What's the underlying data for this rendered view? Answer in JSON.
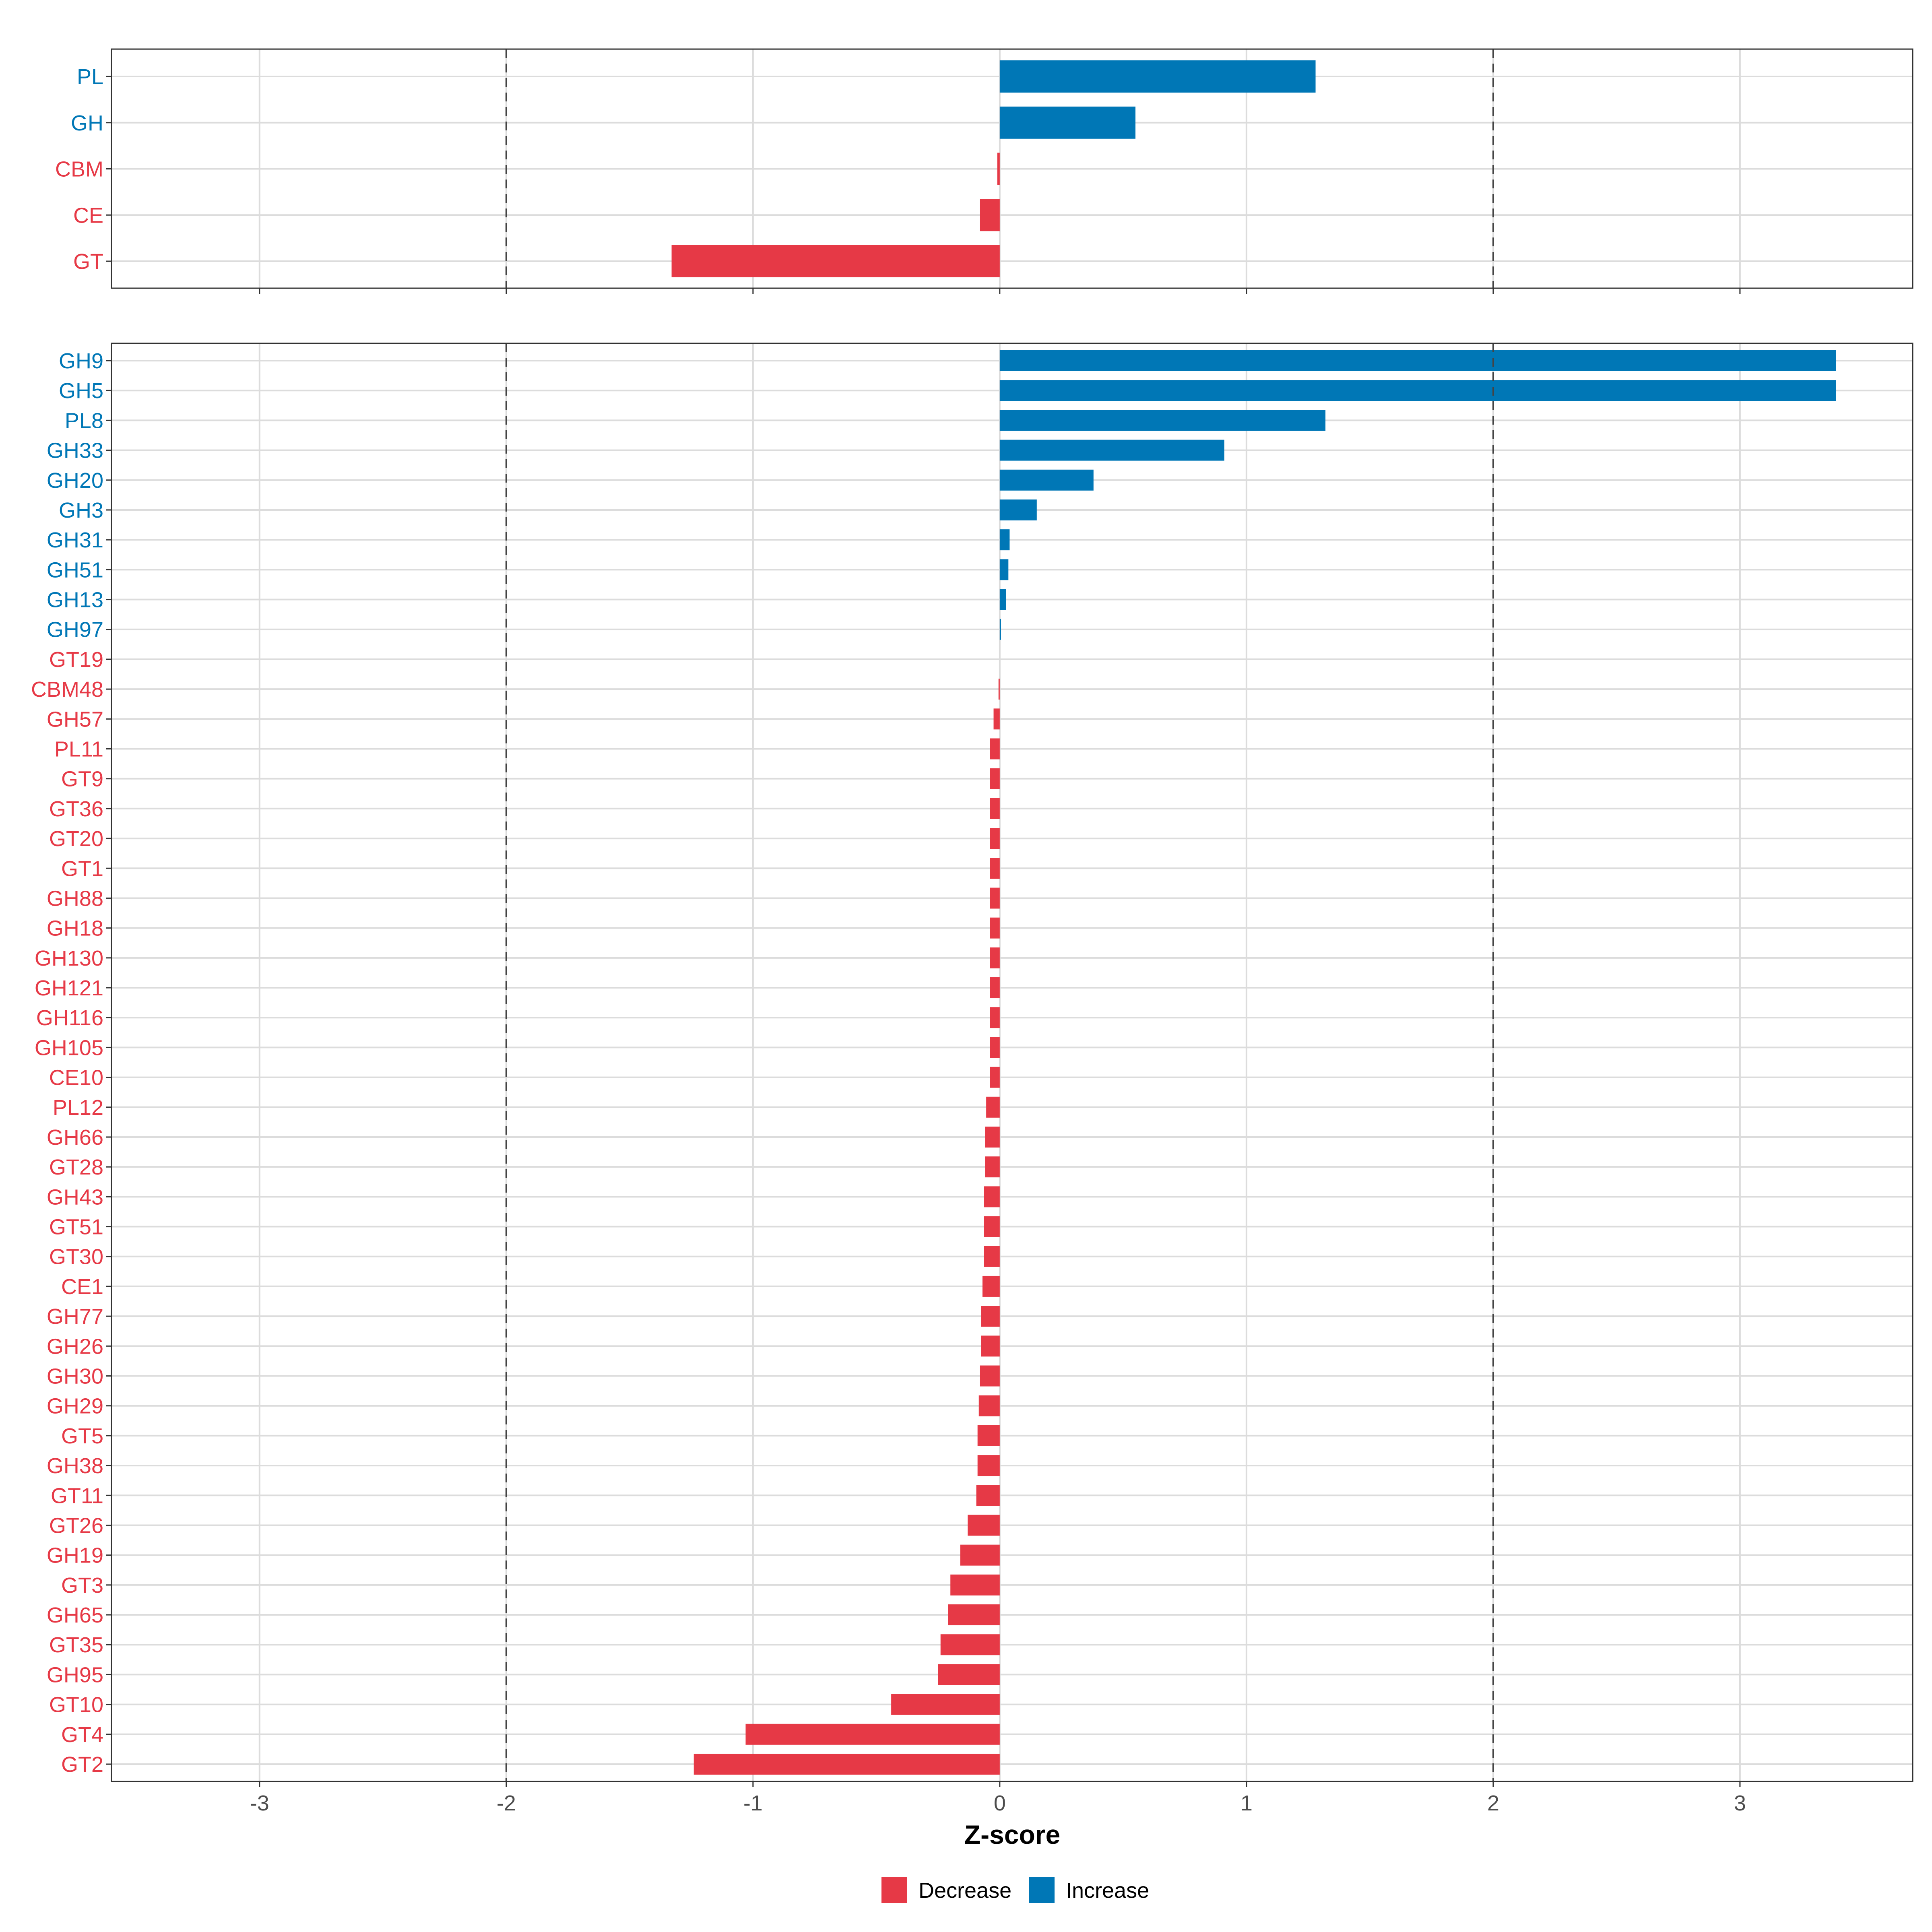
{
  "chart_data": [
    {
      "type": "bar",
      "orientation": "horizontal",
      "panel": "family",
      "categories": [
        "PL",
        "GH",
        "CBM",
        "CE",
        "GT"
      ],
      "values": [
        1.28,
        0.55,
        -0.01,
        -0.08,
        -1.33
      ],
      "xlim": [
        -3.6,
        3.7
      ],
      "xticks": [
        -3,
        -2,
        -1,
        0,
        1,
        2,
        3
      ],
      "reference_lines": [
        -2,
        2
      ],
      "grid": true
    },
    {
      "type": "bar",
      "orientation": "horizontal",
      "panel": "subfamily",
      "categories": [
        "GH9",
        "GH5",
        "PL8",
        "GH33",
        "GH20",
        "GH3",
        "GH31",
        "GH51",
        "GH13",
        "GH97",
        "GT19",
        "CBM48",
        "GH57",
        "PL11",
        "GT9",
        "GT36",
        "GT20",
        "GT1",
        "GH88",
        "GH18",
        "GH130",
        "GH121",
        "GH116",
        "GH105",
        "CE10",
        "PL12",
        "GH66",
        "GT28",
        "GH43",
        "GT51",
        "GT30",
        "CE1",
        "GH77",
        "GH26",
        "GH30",
        "GH29",
        "GT5",
        "GH38",
        "GT11",
        "GT26",
        "GH19",
        "GT3",
        "GH65",
        "GT35",
        "GH95",
        "GT10",
        "GT4",
        "GT2"
      ],
      "values": [
        3.39,
        3.39,
        1.32,
        0.91,
        0.38,
        0.15,
        0.04,
        0.035,
        0.025,
        0.005,
        0,
        -0.005,
        -0.025,
        -0.04,
        -0.04,
        -0.04,
        -0.04,
        -0.04,
        -0.04,
        -0.04,
        -0.04,
        -0.04,
        -0.04,
        -0.04,
        -0.04,
        -0.055,
        -0.06,
        -0.06,
        -0.065,
        -0.065,
        -0.065,
        -0.07,
        -0.075,
        -0.075,
        -0.08,
        -0.085,
        -0.09,
        -0.09,
        -0.095,
        -0.13,
        -0.16,
        -0.2,
        -0.21,
        -0.24,
        -0.25,
        -0.44,
        -1.03,
        -1.24
      ],
      "xlim": [
        -3.6,
        3.7
      ],
      "xticks": [
        -3,
        -2,
        -1,
        0,
        1,
        2,
        3
      ],
      "reference_lines": [
        -2,
        2
      ],
      "grid": true,
      "xlabel": "Z-score"
    }
  ],
  "legend": {
    "position": "bottom",
    "items": [
      {
        "label": "Decrease",
        "color": "#e63946"
      },
      {
        "label": "Increase",
        "color": "#0077b6"
      }
    ]
  },
  "colors": {
    "decrease": "#e63946",
    "increase": "#0077b6",
    "grid": "#dcdcdc",
    "reference_line": "#444444",
    "panel_border": "#333333"
  }
}
